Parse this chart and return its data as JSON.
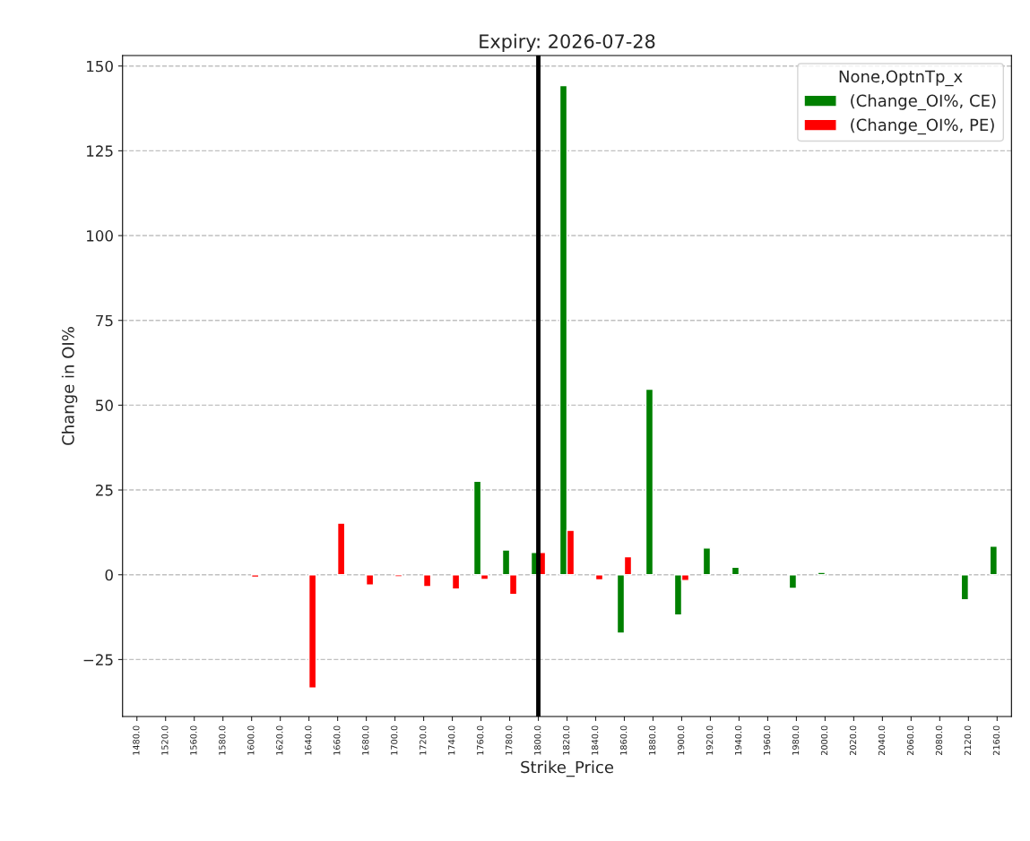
{
  "chart_data": {
    "type": "bar",
    "title": "Expiry: 2026-07-28",
    "xlabel": "Strike_Price",
    "ylabel": "Change in OI%",
    "legend_title": "None,OptnTp_x",
    "categories": [
      "1480.0",
      "1520.0",
      "1560.0",
      "1580.0",
      "1600.0",
      "1620.0",
      "1640.0",
      "1660.0",
      "1680.0",
      "1700.0",
      "1720.0",
      "1740.0",
      "1760.0",
      "1780.0",
      "1800.0",
      "1820.0",
      "1840.0",
      "1860.0",
      "1880.0",
      "1900.0",
      "1920.0",
      "1940.0",
      "1960.0",
      "1980.0",
      "2000.0",
      "2020.0",
      "2040.0",
      "2060.0",
      "2080.0",
      "2120.0",
      "2160.0"
    ],
    "series": [
      {
        "name": "(Change_OI%, CE)",
        "color": "#008000",
        "values": [
          null,
          null,
          null,
          null,
          null,
          null,
          null,
          null,
          null,
          null,
          null,
          null,
          27.6,
          7.3,
          6.6,
          144.2,
          null,
          -17.2,
          54.7,
          -11.9,
          7.9,
          2.2,
          null,
          -4.0,
          0.7,
          null,
          null,
          null,
          null,
          -7.4,
          8.4
        ]
      },
      {
        "name": "(Change_OI%, PE)",
        "color": "#ff0000",
        "values": [
          null,
          null,
          null,
          null,
          -0.7,
          null,
          -33.4,
          15.2,
          -3.0,
          -0.6,
          -3.5,
          -4.2,
          -1.4,
          -5.8,
          6.6,
          13.1,
          -1.5,
          5.3,
          null,
          -1.7,
          null,
          null,
          null,
          null,
          null,
          null,
          null,
          null,
          null,
          null,
          null
        ]
      }
    ],
    "ylim": [
      -41.8,
      153.1
    ],
    "yticks": [
      {
        "value": -25,
        "label": "−25"
      },
      0,
      25,
      50,
      75,
      100,
      125,
      150
    ],
    "ref_lines": [
      {
        "axis": "x",
        "value": "1800.0",
        "color": "#000000"
      }
    ],
    "grid": "y",
    "legend": "top right"
  }
}
